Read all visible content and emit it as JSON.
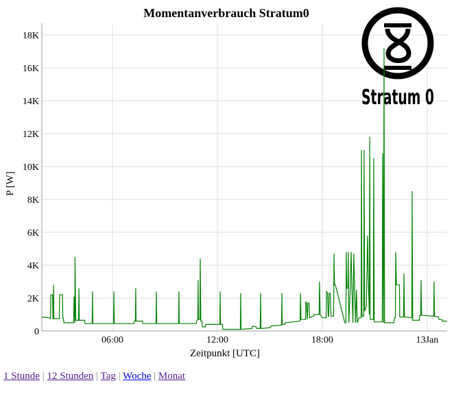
{
  "chart_data": {
    "type": "line",
    "title": "Momentanverbrauch Stratum0",
    "xlabel": "Zeitpunkt [UTC]",
    "ylabel": "P [W]",
    "x_unit": "hours since 12 Jan 00:00 UTC",
    "xlim": [
      1.96,
      25.14
    ],
    "ylim": [
      0,
      18700
    ],
    "x_ticks": [
      {
        "value": 6,
        "label": "06:00"
      },
      {
        "value": 12,
        "label": "12:00"
      },
      {
        "value": 18,
        "label": "18:00"
      },
      {
        "value": 24,
        "label": "13Jan"
      }
    ],
    "y_ticks": [
      {
        "value": 0,
        "label": "0"
      },
      {
        "value": 2000,
        "label": "2K"
      },
      {
        "value": 4000,
        "label": "4K"
      },
      {
        "value": 6000,
        "label": "6K"
      },
      {
        "value": 8000,
        "label": "8K"
      },
      {
        "value": 10000,
        "label": "10K"
      },
      {
        "value": 12000,
        "label": "12K"
      },
      {
        "value": 14000,
        "label": "14K"
      },
      {
        "value": 16000,
        "label": "16K"
      },
      {
        "value": 18000,
        "label": "18K"
      }
    ],
    "grid": true,
    "line_color": "#008000",
    "points": [
      [
        1.96,
        850
      ],
      [
        2.39,
        800
      ],
      [
        2.45,
        750
      ],
      [
        2.47,
        2200
      ],
      [
        2.57,
        2200
      ],
      [
        2.59,
        750
      ],
      [
        2.62,
        750
      ],
      [
        2.63,
        2800
      ],
      [
        2.65,
        750
      ],
      [
        2.96,
        750
      ],
      [
        2.98,
        2200
      ],
      [
        3.14,
        2200
      ],
      [
        3.16,
        750
      ],
      [
        3.2,
        750
      ],
      [
        3.22,
        500
      ],
      [
        3.78,
        500
      ],
      [
        3.8,
        2100
      ],
      [
        3.85,
        500
      ],
      [
        3.86,
        4500
      ],
      [
        3.9,
        650
      ],
      [
        4.06,
        650
      ],
      [
        4.08,
        2600
      ],
      [
        4.1,
        650
      ],
      [
        4.41,
        650
      ],
      [
        4.43,
        450
      ],
      [
        4.84,
        450
      ],
      [
        4.86,
        2400
      ],
      [
        4.88,
        450
      ],
      [
        6.06,
        450
      ],
      [
        6.08,
        2400
      ],
      [
        6.1,
        450
      ],
      [
        7.23,
        450
      ],
      [
        7.25,
        600
      ],
      [
        7.31,
        600
      ],
      [
        7.33,
        2600
      ],
      [
        7.35,
        600
      ],
      [
        7.71,
        600
      ],
      [
        7.73,
        450
      ],
      [
        8.49,
        450
      ],
      [
        8.51,
        2400
      ],
      [
        8.53,
        450
      ],
      [
        9.78,
        450
      ],
      [
        9.8,
        2400
      ],
      [
        9.82,
        450
      ],
      [
        10.8,
        450
      ],
      [
        10.82,
        600
      ],
      [
        10.88,
        700
      ],
      [
        10.9,
        3100
      ],
      [
        10.92,
        700
      ],
      [
        11.0,
        700
      ],
      [
        11.02,
        4400
      ],
      [
        11.05,
        600
      ],
      [
        11.12,
        600
      ],
      [
        11.14,
        250
      ],
      [
        11.31,
        250
      ],
      [
        11.33,
        400
      ],
      [
        12.14,
        400
      ],
      [
        12.16,
        2400
      ],
      [
        12.18,
        400
      ],
      [
        12.29,
        400
      ],
      [
        12.31,
        100
      ],
      [
        13.31,
        100
      ],
      [
        13.33,
        2300
      ],
      [
        13.35,
        100
      ],
      [
        13.98,
        150
      ],
      [
        14.0,
        300
      ],
      [
        14.22,
        250
      ],
      [
        14.24,
        150
      ],
      [
        14.45,
        150
      ],
      [
        14.47,
        2300
      ],
      [
        14.49,
        150
      ],
      [
        15.04,
        200
      ],
      [
        15.06,
        300
      ],
      [
        15.67,
        350
      ],
      [
        15.69,
        2300
      ],
      [
        15.71,
        400
      ],
      [
        15.86,
        400
      ],
      [
        15.88,
        500
      ],
      [
        16.73,
        600
      ],
      [
        16.75,
        2300
      ],
      [
        16.78,
        700
      ],
      [
        17.04,
        700
      ],
      [
        17.06,
        1800
      ],
      [
        17.1,
        1700
      ],
      [
        17.14,
        700
      ],
      [
        17.18,
        1700
      ],
      [
        17.25,
        1700
      ],
      [
        17.27,
        800
      ],
      [
        17.51,
        900
      ],
      [
        17.53,
        1000
      ],
      [
        17.82,
        1000
      ],
      [
        17.84,
        3000
      ],
      [
        17.88,
        1000
      ],
      [
        18.0,
        800
      ],
      [
        18.22,
        800
      ],
      [
        18.24,
        2400
      ],
      [
        18.3,
        2300
      ],
      [
        18.34,
        900
      ],
      [
        18.37,
        900
      ],
      [
        18.39,
        2300
      ],
      [
        18.45,
        2300
      ],
      [
        18.5,
        900
      ],
      [
        18.65,
        900
      ],
      [
        18.67,
        4700
      ],
      [
        18.7,
        2800
      ],
      [
        18.75,
        2800
      ],
      [
        19.29,
        500
      ],
      [
        19.35,
        500
      ],
      [
        19.37,
        4800
      ],
      [
        19.4,
        2600
      ],
      [
        19.47,
        2600
      ],
      [
        19.49,
        4800
      ],
      [
        19.52,
        500
      ],
      [
        19.6,
        2600
      ],
      [
        19.65,
        4800
      ],
      [
        19.7,
        2400
      ],
      [
        19.75,
        500
      ],
      [
        19.8,
        4700
      ],
      [
        19.84,
        3000
      ],
      [
        19.9,
        500
      ],
      [
        19.96,
        2500
      ],
      [
        20.0,
        500
      ],
      [
        20.1,
        800
      ],
      [
        20.22,
        800
      ],
      [
        20.24,
        11000
      ],
      [
        20.27,
        900
      ],
      [
        20.37,
        900
      ],
      [
        20.39,
        11000
      ],
      [
        20.42,
        1200
      ],
      [
        20.52,
        1500
      ],
      [
        20.59,
        5800
      ],
      [
        20.62,
        3500
      ],
      [
        20.69,
        1000
      ],
      [
        20.71,
        11800
      ],
      [
        20.74,
        700
      ],
      [
        20.92,
        700
      ],
      [
        20.94,
        10500
      ],
      [
        20.97,
        550
      ],
      [
        21.43,
        550
      ],
      [
        21.45,
        10800
      ],
      [
        21.5,
        500
      ],
      [
        21.53,
        17200
      ],
      [
        21.56,
        500
      ],
      [
        22.1,
        500
      ],
      [
        22.12,
        800
      ],
      [
        22.18,
        800
      ],
      [
        22.2,
        4800
      ],
      [
        22.24,
        2800
      ],
      [
        22.41,
        2800
      ],
      [
        22.43,
        850
      ],
      [
        22.65,
        850
      ],
      [
        22.67,
        3500
      ],
      [
        22.7,
        850
      ],
      [
        23.12,
        800
      ],
      [
        23.14,
        8500
      ],
      [
        23.17,
        650
      ],
      [
        23.55,
        650
      ],
      [
        23.57,
        950
      ],
      [
        23.63,
        950
      ],
      [
        23.65,
        3100
      ],
      [
        23.68,
        950
      ],
      [
        24.37,
        900
      ],
      [
        24.39,
        3000
      ],
      [
        24.42,
        900
      ],
      [
        24.65,
        850
      ],
      [
        24.67,
        700
      ],
      [
        24.84,
        700
      ],
      [
        24.86,
        600
      ],
      [
        25.14,
        600
      ]
    ]
  },
  "logo": {
    "text": "Stratum 0"
  },
  "links": [
    {
      "label": "1 Stunde",
      "current": false
    },
    {
      "label": "12 Stunden",
      "current": false
    },
    {
      "label": "Tag",
      "current": false
    },
    {
      "label": "Woche",
      "current": true
    },
    {
      "label": "Monat",
      "current": false
    }
  ],
  "separator": "|"
}
